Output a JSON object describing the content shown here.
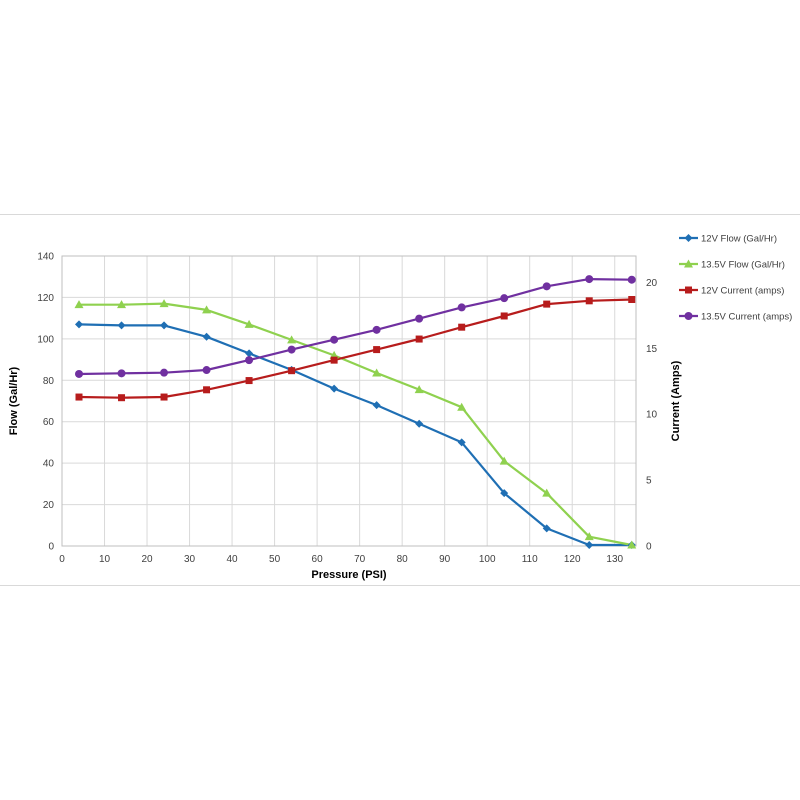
{
  "chart_data": {
    "type": "line",
    "xlabel": "Pressure (PSI)",
    "ylabel": "Flow  (Gal/Hr)",
    "y2label": "Current  (Amps)",
    "xlim": [
      0,
      135
    ],
    "ylim": [
      0,
      140
    ],
    "y2lim": [
      0,
      22
    ],
    "xticks": [
      "0",
      "10",
      "20",
      "30",
      "40",
      "50",
      "60",
      "70",
      "80",
      "90",
      "100",
      "110",
      "120",
      "130"
    ],
    "yticks": [
      "0",
      "20",
      "40",
      "60",
      "80",
      "100",
      "120",
      "140"
    ],
    "y2ticks": [
      "0",
      "5",
      "10",
      "15",
      "20"
    ],
    "grid": true,
    "legend_position": "right",
    "x": [
      4,
      14,
      24,
      34,
      44,
      54,
      64,
      74,
      84,
      94,
      104,
      114,
      124,
      134
    ],
    "series": [
      {
        "name": "12V Flow (Gal/Hr)",
        "axis": "left",
        "color": "#1f6fb4",
        "marker": "diamond",
        "values": [
          107,
          106.5,
          106.5,
          101,
          93,
          85,
          76,
          68,
          59,
          50,
          25.5,
          8.5,
          0.5,
          0.5
        ]
      },
      {
        "name": "13.5V Flow (Gal/Hr)",
        "axis": "left",
        "color": "#8fd14f",
        "marker": "triangle",
        "values": [
          116.5,
          116.5,
          117,
          114,
          107,
          99.5,
          92,
          83.5,
          75.5,
          67,
          41,
          25.5,
          4.5,
          0.5
        ]
      },
      {
        "name": "12V Current (amps)",
        "axis": "right",
        "color": "#b71c1c",
        "marker": "square",
        "values": [
          11.3,
          11.25,
          11.3,
          11.85,
          12.55,
          13.3,
          14.1,
          14.9,
          15.7,
          16.6,
          17.45,
          18.35,
          18.6,
          18.7
        ]
      },
      {
        "name": "13.5V Current (amps)",
        "axis": "right",
        "color": "#7030a0",
        "marker": "circle",
        "values": [
          13.05,
          13.1,
          13.15,
          13.35,
          14.1,
          14.9,
          15.65,
          16.4,
          17.25,
          18.1,
          18.8,
          19.7,
          20.25,
          20.2
        ]
      }
    ]
  }
}
